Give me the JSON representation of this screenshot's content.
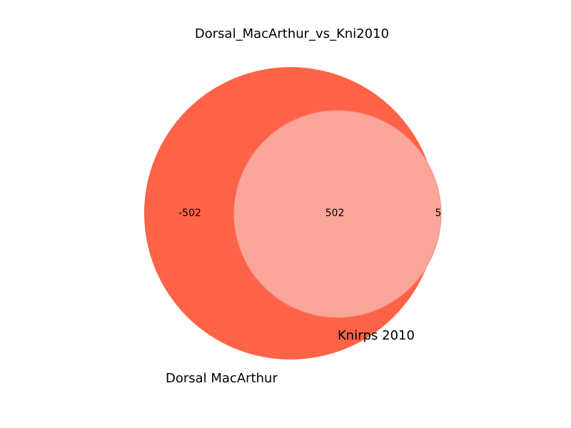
{
  "title": "Dorsal_MacArthur_vs_Kni2010",
  "sets": [
    {
      "name": "Dorsal MacArthur",
      "color": "#ff6347"
    },
    {
      "name": "Knirps 2010",
      "color": "#7fffd4"
    }
  ],
  "regions": {
    "only_a": "-502",
    "intersection": "502",
    "only_b": "5"
  },
  "colors": {
    "set_a": "#ff6347",
    "set_b": "#7fffd4",
    "overlap": "#faa59a",
    "background": "#ffffff"
  }
}
